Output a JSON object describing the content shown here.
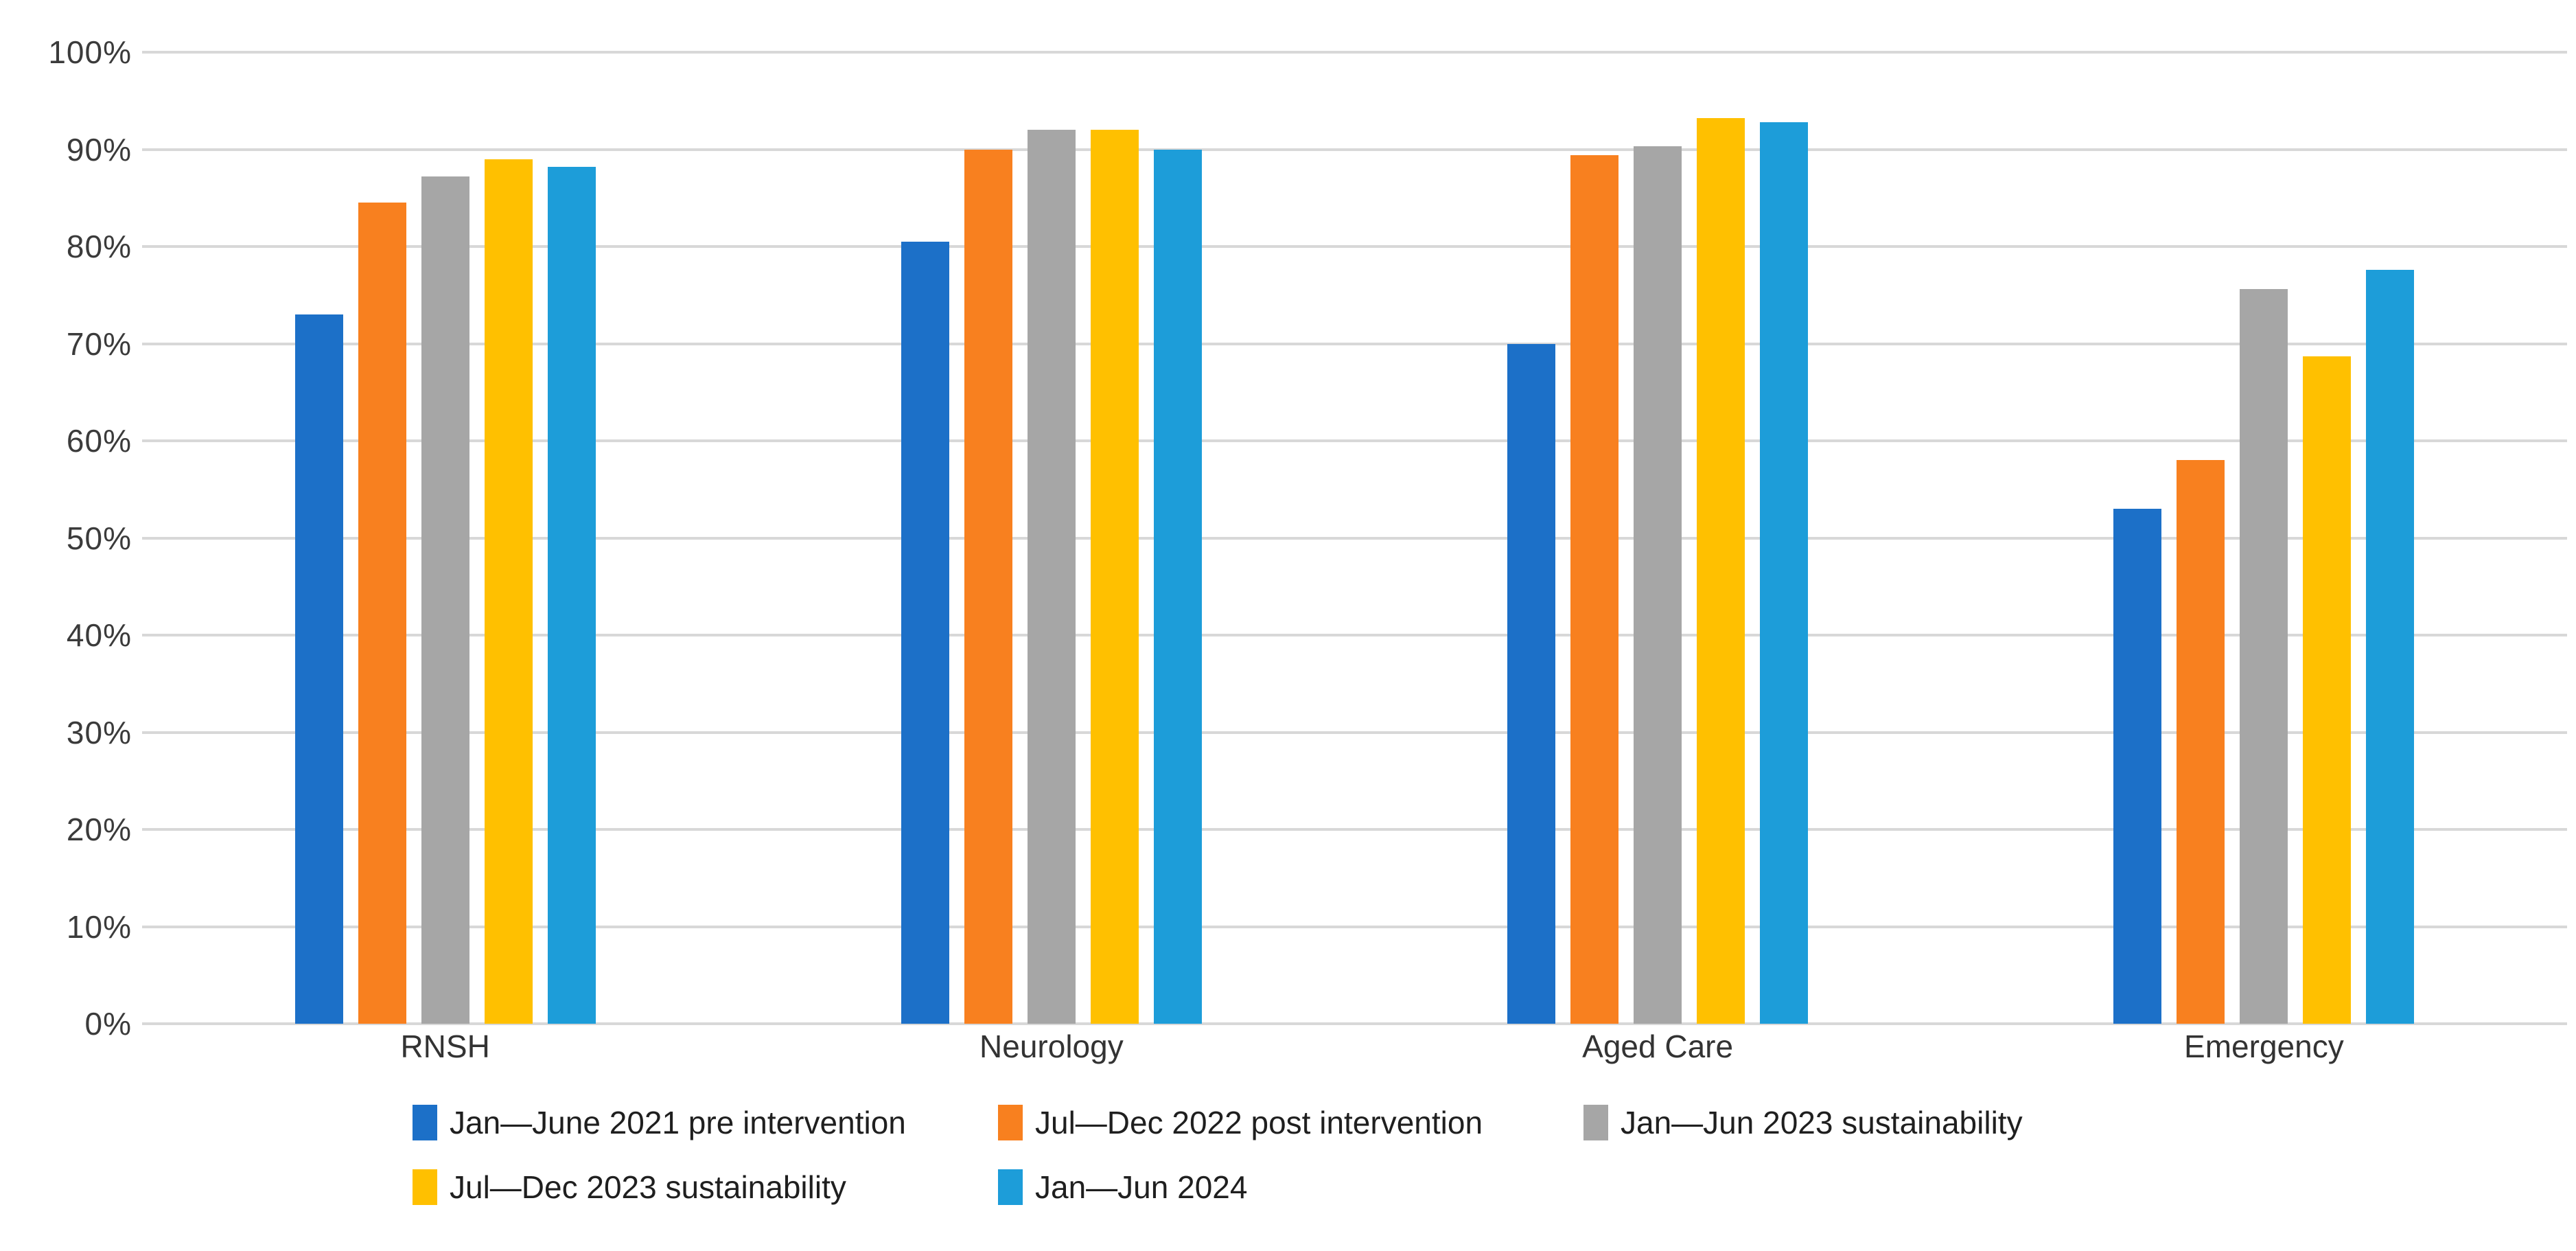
{
  "chart_data": {
    "type": "bar",
    "title": "",
    "xlabel": "",
    "ylabel": "",
    "categories": [
      "RNSH",
      "Neurology",
      "Aged Care",
      "Emergency"
    ],
    "series": [
      {
        "name": "Jan—June 2021 pre intervention",
        "color": "#1c70c8",
        "values": [
          73,
          80.5,
          70,
          53
        ]
      },
      {
        "name": "Jul—Dec 2022 post intervention",
        "color": "#f8801f",
        "values": [
          84.5,
          90,
          89.4,
          58
        ]
      },
      {
        "name": "Jan—Jun 2023 sustainability",
        "color": "#a6a6a6",
        "values": [
          87.2,
          92,
          90.3,
          75.6
        ]
      },
      {
        "name": "Jul—Dec 2023 sustainability",
        "color": "#ffc000",
        "values": [
          89,
          92,
          93.2,
          68.7
        ]
      },
      {
        "name": "Jan—Jun 2024",
        "color": "#1d9dd9",
        "values": [
          88.2,
          90,
          92.8,
          77.6
        ]
      }
    ],
    "y_axis": {
      "min": 0,
      "max": 100,
      "step": 10,
      "unit": "%",
      "tick_labels": [
        "0%",
        "10%",
        "20%",
        "30%",
        "40%",
        "50%",
        "60%",
        "70%",
        "80%",
        "90%",
        "100%"
      ]
    },
    "grid": true,
    "legend_position": "bottom",
    "legend_rows": [
      [
        "Jan—June 2021 pre intervention",
        "Jul—Dec 2022 post intervention",
        "Jan—Jun 2023 sustainability"
      ],
      [
        "Jul—Dec 2023 sustainability",
        "Jan—Jun 2024"
      ]
    ]
  },
  "colors": {
    "background": "#ffffff",
    "gridline": "#d8d8d8",
    "axis_text": "#3b3b3b",
    "legend_text": "#1f1f1f"
  }
}
